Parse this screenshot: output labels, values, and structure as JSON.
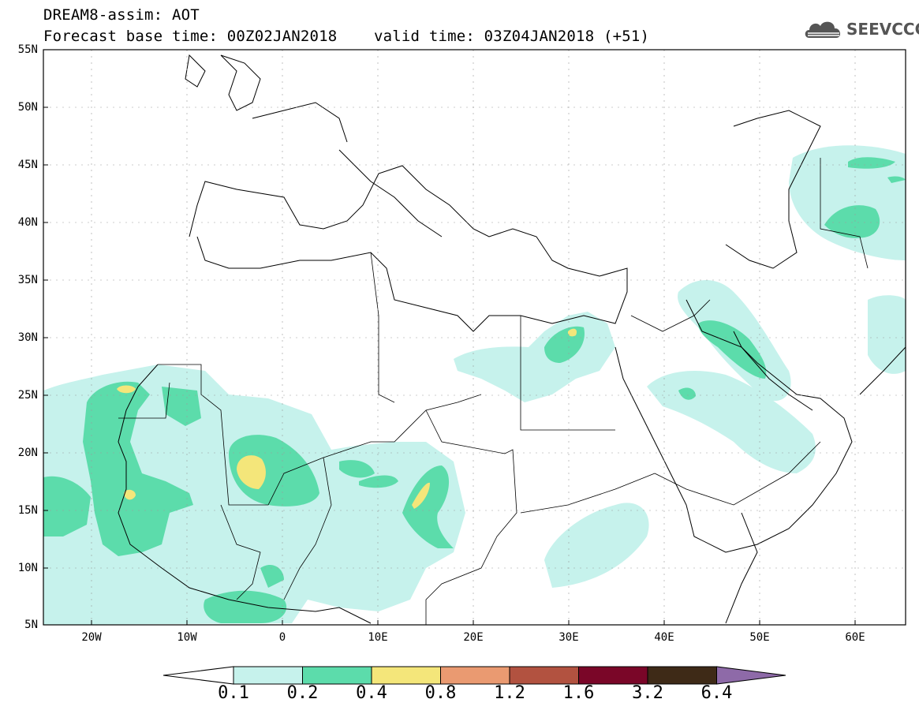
{
  "header": {
    "line1": "DREAM8-assim: AOT",
    "line2": "Forecast base time: 00Z02JAN2018    valid time: 03Z04JAN2018 (+51)"
  },
  "logo": {
    "text": "SEEVCCC",
    "icon": "cloud-icon"
  },
  "map": {
    "lon_range": [
      -25,
      65
    ],
    "lat_range": [
      5,
      55
    ],
    "lat_labels": [
      "55N",
      "50N",
      "45N",
      "40N",
      "35N",
      "30N",
      "25N",
      "20N",
      "15N",
      "10N",
      "5N"
    ],
    "lon_labels": [
      "20W",
      "10W",
      "0",
      "10E",
      "20E",
      "30E",
      "40E",
      "50E",
      "60E"
    ]
  },
  "colorbar": {
    "labels": [
      "0.1",
      "0.2",
      "0.4",
      "0.8",
      "1.2",
      "1.6",
      "3.2",
      "6.4"
    ],
    "colors": [
      "#ffffff",
      "#c6f2ec",
      "#5cdcab",
      "#f4e67a",
      "#ea9a71",
      "#b25240",
      "#7a0628",
      "#3e2a17",
      "#8e6aa8"
    ]
  }
}
